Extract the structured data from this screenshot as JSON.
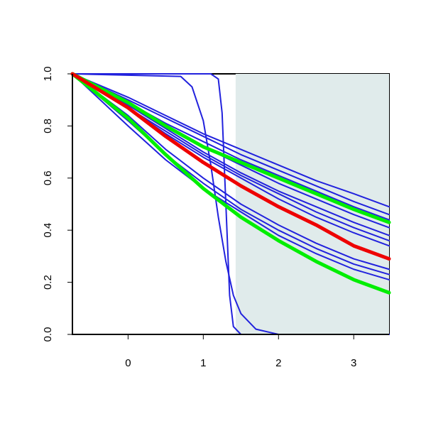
{
  "chart_data": {
    "type": "line",
    "xlim": [
      -0.74,
      3.47
    ],
    "ylim": [
      0,
      1
    ],
    "xticks": [
      0,
      1,
      2,
      3
    ],
    "yticks": [
      {
        "value": 0,
        "label": "0.0"
      },
      {
        "value": 0.2,
        "label": "0.2"
      },
      {
        "value": 0.4,
        "label": "0.4"
      },
      {
        "value": 0.6,
        "label": "0.6"
      },
      {
        "value": 0.8,
        "label": "0.8"
      },
      {
        "value": 1,
        "label": "1.0"
      }
    ],
    "shaded_region": {
      "xlim": [
        1.43,
        3.47
      ],
      "ylim": [
        0,
        1
      ],
      "color": "#e0ebeb"
    },
    "x": [
      -0.74,
      0,
      0.5,
      1,
      1.5,
      2,
      2.5,
      3,
      3.47
    ],
    "series": [
      {
        "color": "#2222dd",
        "width": 2,
        "values": [
          1,
          0.91,
          0.84,
          0.77,
          0.71,
          0.65,
          0.59,
          0.54,
          0.49
        ]
      },
      {
        "color": "#2222dd",
        "width": 2,
        "values": [
          1,
          0.9,
          0.83,
          0.76,
          0.69,
          0.63,
          0.57,
          0.51,
          0.46
        ]
      },
      {
        "color": "#2222dd",
        "width": 2,
        "values": [
          1,
          0.89,
          0.81,
          0.74,
          0.67,
          0.61,
          0.55,
          0.49,
          0.44
        ]
      },
      {
        "color": "#2222dd",
        "width": 2,
        "values": [
          1,
          0.88,
          0.8,
          0.72,
          0.65,
          0.58,
          0.52,
          0.46,
          0.41
        ]
      },
      {
        "color": "#2222dd",
        "width": 2,
        "values": [
          1,
          0.88,
          0.79,
          0.7,
          0.62,
          0.55,
          0.49,
          0.43,
          0.38
        ]
      },
      {
        "color": "#2222dd",
        "width": 2,
        "values": [
          1,
          0.87,
          0.78,
          0.69,
          0.61,
          0.54,
          0.47,
          0.41,
          0.36
        ]
      },
      {
        "color": "#2222dd",
        "width": 2,
        "values": [
          1,
          0.87,
          0.77,
          0.68,
          0.6,
          0.52,
          0.45,
          0.39,
          0.34
        ]
      },
      {
        "color": "#2222dd",
        "width": 2,
        "values": [
          1,
          0.84,
          0.71,
          0.6,
          0.5,
          0.42,
          0.35,
          0.29,
          0.25
        ]
      },
      {
        "color": "#2222dd",
        "width": 2,
        "values": [
          1,
          0.82,
          0.69,
          0.58,
          0.48,
          0.4,
          0.33,
          0.27,
          0.23
        ]
      },
      {
        "color": "#2222dd",
        "width": 2,
        "values": [
          1,
          0.8,
          0.67,
          0.56,
          0.47,
          0.38,
          0.31,
          0.25,
          0.21
        ]
      },
      {
        "color": "#2222dd",
        "width": 2,
        "x": [
          -0.74,
          0.7,
          0.85,
          1.0,
          1.1,
          1.2,
          1.3,
          1.4,
          1.5,
          1.7,
          2.0,
          3.47
        ],
        "values": [
          1,
          0.99,
          0.95,
          0.82,
          0.65,
          0.45,
          0.28,
          0.15,
          0.08,
          0.02,
          0,
          0
        ]
      },
      {
        "color": "#2222dd",
        "width": 2,
        "x": [
          -0.74,
          1.1,
          1.2,
          1.25,
          1.3,
          1.35,
          1.4,
          1.5,
          3.47
        ],
        "values": [
          1,
          1,
          0.98,
          0.85,
          0.5,
          0.15,
          0.03,
          0,
          0
        ]
      },
      {
        "color": "#00ee00",
        "width": 5,
        "values": [
          1,
          0.89,
          0.8,
          0.72,
          0.66,
          0.6,
          0.54,
          0.48,
          0.43
        ]
      },
      {
        "color": "#00ee00",
        "width": 5,
        "values": [
          1,
          0.83,
          0.69,
          0.56,
          0.45,
          0.36,
          0.28,
          0.21,
          0.16
        ]
      },
      {
        "color": "#ee0000",
        "width": 5,
        "values": [
          1,
          0.87,
          0.76,
          0.66,
          0.57,
          0.49,
          0.42,
          0.34,
          0.29
        ]
      }
    ]
  }
}
